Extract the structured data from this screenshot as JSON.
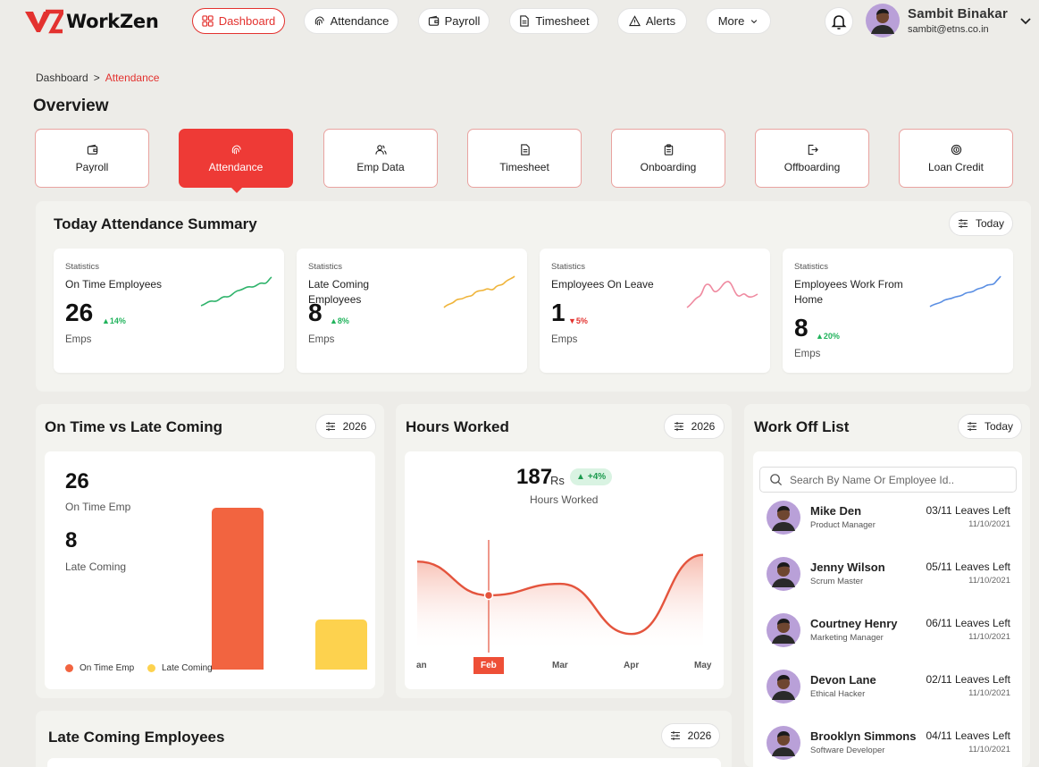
{
  "header": {
    "brand": "WorkZen",
    "nav": [
      {
        "label": "Dashboard",
        "icon": "grid-icon",
        "active": true
      },
      {
        "label": "Attendance",
        "icon": "fingerprint-icon"
      },
      {
        "label": "Payroll",
        "icon": "wallet-icon"
      },
      {
        "label": "Timesheet",
        "icon": "document-icon"
      },
      {
        "label": "Alerts",
        "icon": "alert-triangle-icon"
      },
      {
        "label": "More",
        "icon": "chevron-down-icon"
      }
    ],
    "user": {
      "name": "Sambit Binakar",
      "email": "sambit@etns.co.in"
    }
  },
  "breadcrumb": {
    "root": "Dashboard",
    "sep": ">",
    "current": "Attendance"
  },
  "page_title": "Overview",
  "modules": [
    {
      "label": "Payroll",
      "icon": "wallet-icon"
    },
    {
      "label": "Attendance",
      "icon": "fingerprint-icon",
      "active": true
    },
    {
      "label": "Emp Data",
      "icon": "users-icon"
    },
    {
      "label": "Timesheet",
      "icon": "document-icon"
    },
    {
      "label": "Onboarding",
      "icon": "clipboard-icon"
    },
    {
      "label": "Offboarding",
      "icon": "exit-icon"
    },
    {
      "label": "Loan Credit",
      "icon": "coin-icon"
    }
  ],
  "summary": {
    "title": "Today Attendance Summary",
    "filter": "Today",
    "cards": [
      {
        "label": "Statistics",
        "name": "On Time Employees",
        "value": "26",
        "change": "14%",
        "direction": "up",
        "unit": "Emps",
        "color": "#2fb36b"
      },
      {
        "label": "Statistics",
        "name": "Late Coming Employees",
        "value": "8",
        "change": "8%",
        "direction": "up",
        "unit": "Emps",
        "color": "#efb43a"
      },
      {
        "label": "Statistics",
        "name": "Employees On Leave",
        "value": "1",
        "change": "5%",
        "direction": "down",
        "unit": "Emps",
        "color": "#ef8aa0"
      },
      {
        "label": "Statistics",
        "name": "Employees Work From Home",
        "value": "8",
        "change": "20%",
        "direction": "up",
        "unit": "Emps",
        "color": "#5b8fe3"
      }
    ]
  },
  "ontime_vs_late": {
    "title": "On Time vs Late Coming",
    "filter": "2026",
    "on_time_value": "26",
    "on_time_label": "On Time Emp",
    "late_value": "8",
    "late_label": "Late Coming",
    "legend": [
      "On Time Emp",
      "Late Coming"
    ],
    "colors": {
      "on_time": "#f26440",
      "late": "#fdd24e"
    }
  },
  "hours_worked": {
    "title": "Hours Worked",
    "filter": "2026",
    "value": "187",
    "unit": "Rs",
    "change": "+4%",
    "label": "Hours Worked",
    "x_ticks": [
      "Jan",
      "Feb",
      "Mar",
      "Apr",
      "May"
    ],
    "x_ticks_visible": [
      "an",
      "Feb",
      "Mar",
      "Apr",
      "May"
    ],
    "active_tick": "Feb",
    "line_color": "#e4543d"
  },
  "work_off": {
    "title": "Work Off List",
    "filter": "Today",
    "search_placeholder": "Search By Name Or Employee Id..",
    "items": [
      {
        "name": "Mike Den",
        "role": "Product Manager",
        "leaves": "03/11 Leaves Left",
        "date": "11/10/2021"
      },
      {
        "name": "Jenny Wilson",
        "role": "Scrum Master",
        "leaves": "05/11 Leaves Left",
        "date": "11/10/2021"
      },
      {
        "name": "Courtney Henry",
        "role": "Marketing Manager",
        "leaves": "06/11 Leaves Left",
        "date": "11/10/2021"
      },
      {
        "name": "Devon Lane",
        "role": "Ethical Hacker",
        "leaves": "02/11 Leaves Left",
        "date": "11/10/2021"
      },
      {
        "name": "Brooklyn Simmons",
        "role": "Software Developer",
        "leaves": "04/11 Leaves Left",
        "date": "11/10/2021"
      }
    ]
  },
  "late_coming": {
    "title": "Late Coming Employees",
    "filter": "2026"
  },
  "chart_data": [
    {
      "type": "bar",
      "categories": [
        "On Time Emp",
        "Late Coming"
      ],
      "values": [
        26,
        8
      ],
      "legend": "bottom-left"
    },
    {
      "type": "area",
      "categories": [
        "Jan",
        "Feb",
        "Mar",
        "Apr",
        "May"
      ],
      "values": [
        155,
        120,
        132,
        80,
        162
      ],
      "highlight": "Feb"
    }
  ]
}
